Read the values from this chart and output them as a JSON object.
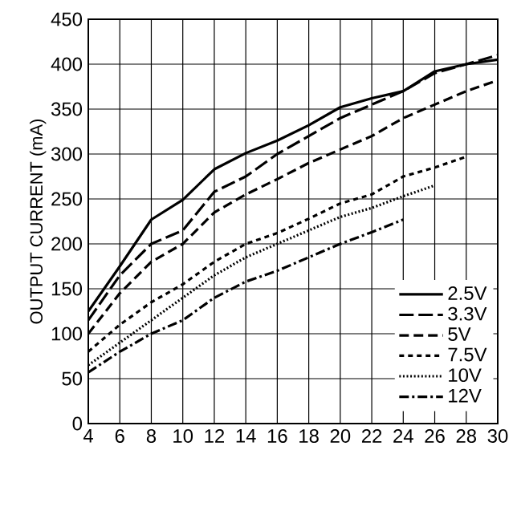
{
  "chart_data": {
    "type": "line",
    "ylabel": "OUTPUT CURRENT (mA)",
    "x": [
      4,
      6,
      8,
      10,
      12,
      14,
      16,
      18,
      20,
      22,
      24,
      26,
      28,
      30
    ],
    "xlim": [
      4,
      30
    ],
    "xticks": [
      4,
      6,
      8,
      10,
      12,
      14,
      16,
      18,
      20,
      22,
      24,
      26,
      28,
      30
    ],
    "ylim": [
      0,
      450
    ],
    "yticks": [
      0,
      50,
      100,
      150,
      200,
      250,
      300,
      350,
      400,
      450
    ],
    "grid": true,
    "legend": "bottom right",
    "marker": "none",
    "series": [
      {
        "name": "2.5V",
        "color": "#000000",
        "line_style": "solid",
        "values": [
          125,
          175,
          227,
          249,
          283,
          301,
          315,
          332,
          352,
          362,
          370,
          392,
          400,
          405
        ]
      },
      {
        "name": "3.3V",
        "color": "#000000",
        "line_style": "dashed",
        "values": [
          115,
          165,
          200,
          215,
          258,
          275,
          300,
          320,
          340,
          355,
          370,
          390,
          400,
          410
        ]
      },
      {
        "name": "5V",
        "color": "#000000",
        "line_style": "dashed",
        "values": [
          100,
          145,
          180,
          200,
          235,
          255,
          272,
          290,
          305,
          320,
          340,
          355,
          370,
          382
        ]
      },
      {
        "name": "7.5V",
        "color": "#000000",
        "line_style": "dashed",
        "values": [
          80,
          110,
          135,
          155,
          180,
          200,
          212,
          228,
          245,
          255,
          275,
          285,
          297,
          null
        ]
      },
      {
        "name": "10V",
        "color": "#000000",
        "line_style": "dotted",
        "values": [
          65,
          90,
          115,
          140,
          165,
          185,
          200,
          215,
          230,
          240,
          253,
          265,
          null,
          null
        ]
      },
      {
        "name": "12V",
        "color": "#000000",
        "line_style": "dashed",
        "values": [
          57,
          80,
          100,
          115,
          140,
          158,
          170,
          185,
          200,
          213,
          227,
          null,
          null,
          null
        ]
      }
    ]
  }
}
